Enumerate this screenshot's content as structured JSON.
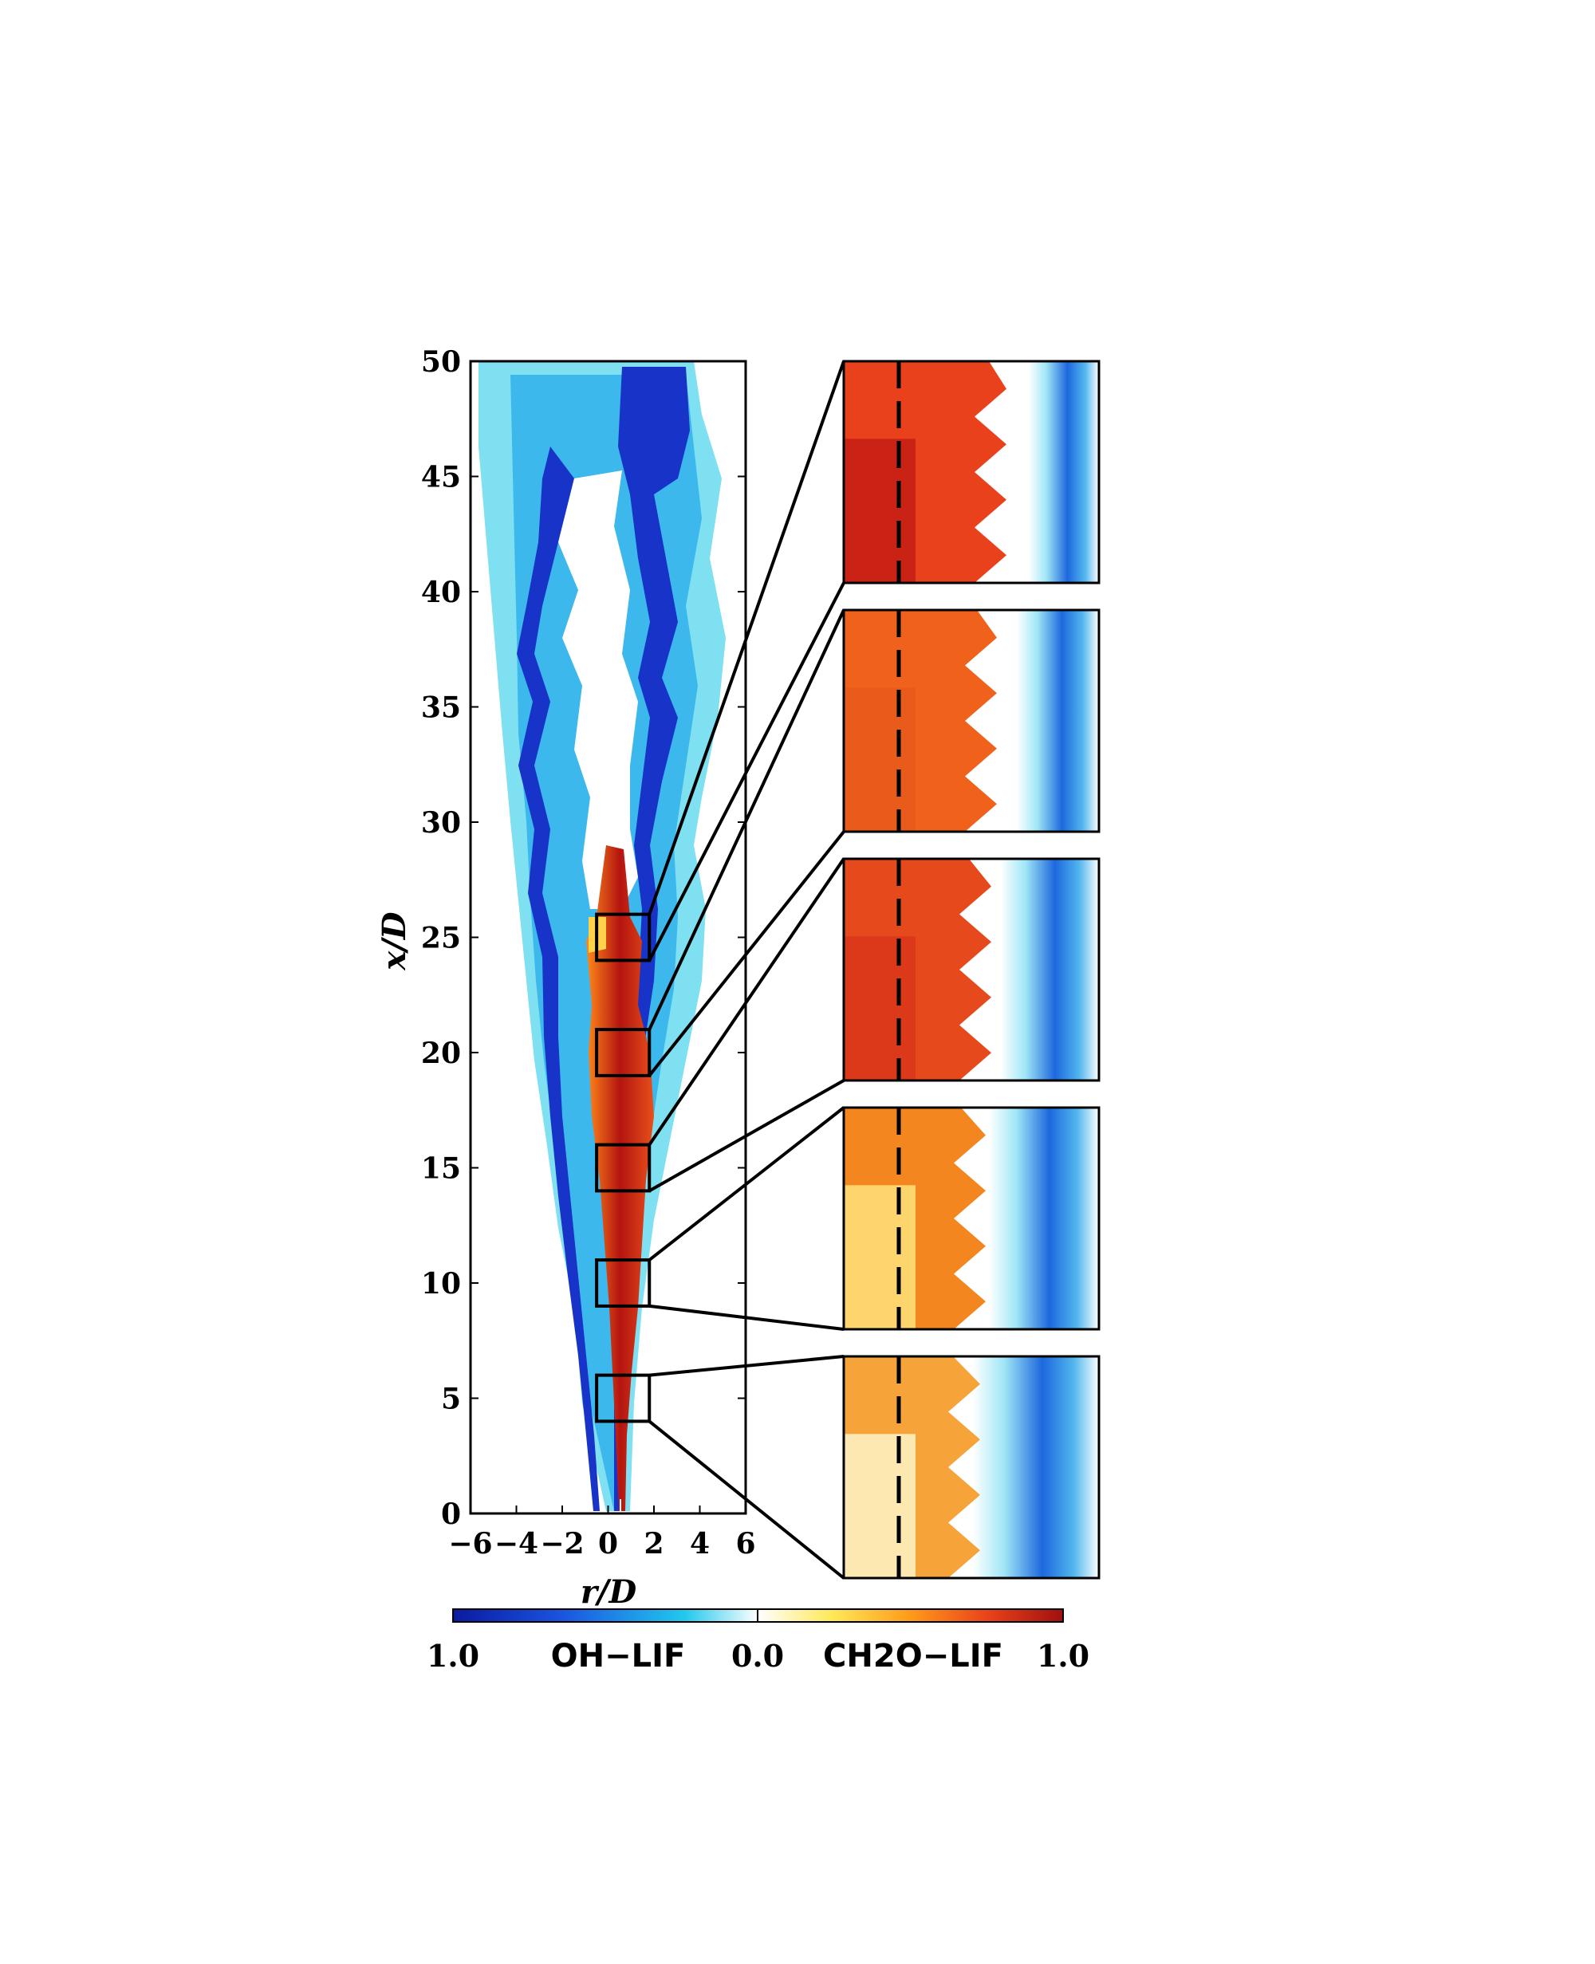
{
  "chart_data": {
    "type": "heatmap",
    "title": "",
    "xlabel": "r/D",
    "ylabel": "x/D",
    "xlim": [
      -6,
      6
    ],
    "ylim": [
      0,
      50
    ],
    "x_ticks": [
      "−6",
      "−4",
      "−2",
      "0",
      "2",
      "4",
      "6"
    ],
    "x_tick_values": [
      -6,
      -4,
      -2,
      0,
      2,
      4,
      6
    ],
    "y_ticks": [
      "0",
      "5",
      "10",
      "15",
      "20",
      "25",
      "30",
      "35",
      "40",
      "45",
      "50"
    ],
    "y_tick_values": [
      0,
      5,
      10,
      15,
      20,
      25,
      30,
      35,
      40,
      45,
      50
    ],
    "zoom_windows": [
      {
        "r": [
          -0.5,
          1.8
        ],
        "x": [
          24,
          26
        ]
      },
      {
        "r": [
          -0.5,
          1.8
        ],
        "x": [
          19,
          21
        ]
      },
      {
        "r": [
          -0.5,
          1.8
        ],
        "x": [
          14,
          16
        ]
      },
      {
        "r": [
          -0.5,
          1.8
        ],
        "x": [
          9,
          11
        ]
      },
      {
        "r": [
          -0.5,
          1.8
        ],
        "x": [
          4,
          6
        ]
      }
    ],
    "colorbar": {
      "left_label": "1.0",
      "left_name": "OH−LIF",
      "center_label": "0.0",
      "right_name": "CH2O−LIF",
      "right_label": "1.0",
      "colors": [
        "#0a1aa0",
        "#1a55e0",
        "#22c8ee",
        "#ffffff",
        "#ffe95a",
        "#ff9a1a",
        "#e8401a",
        "#a01010"
      ]
    }
  }
}
